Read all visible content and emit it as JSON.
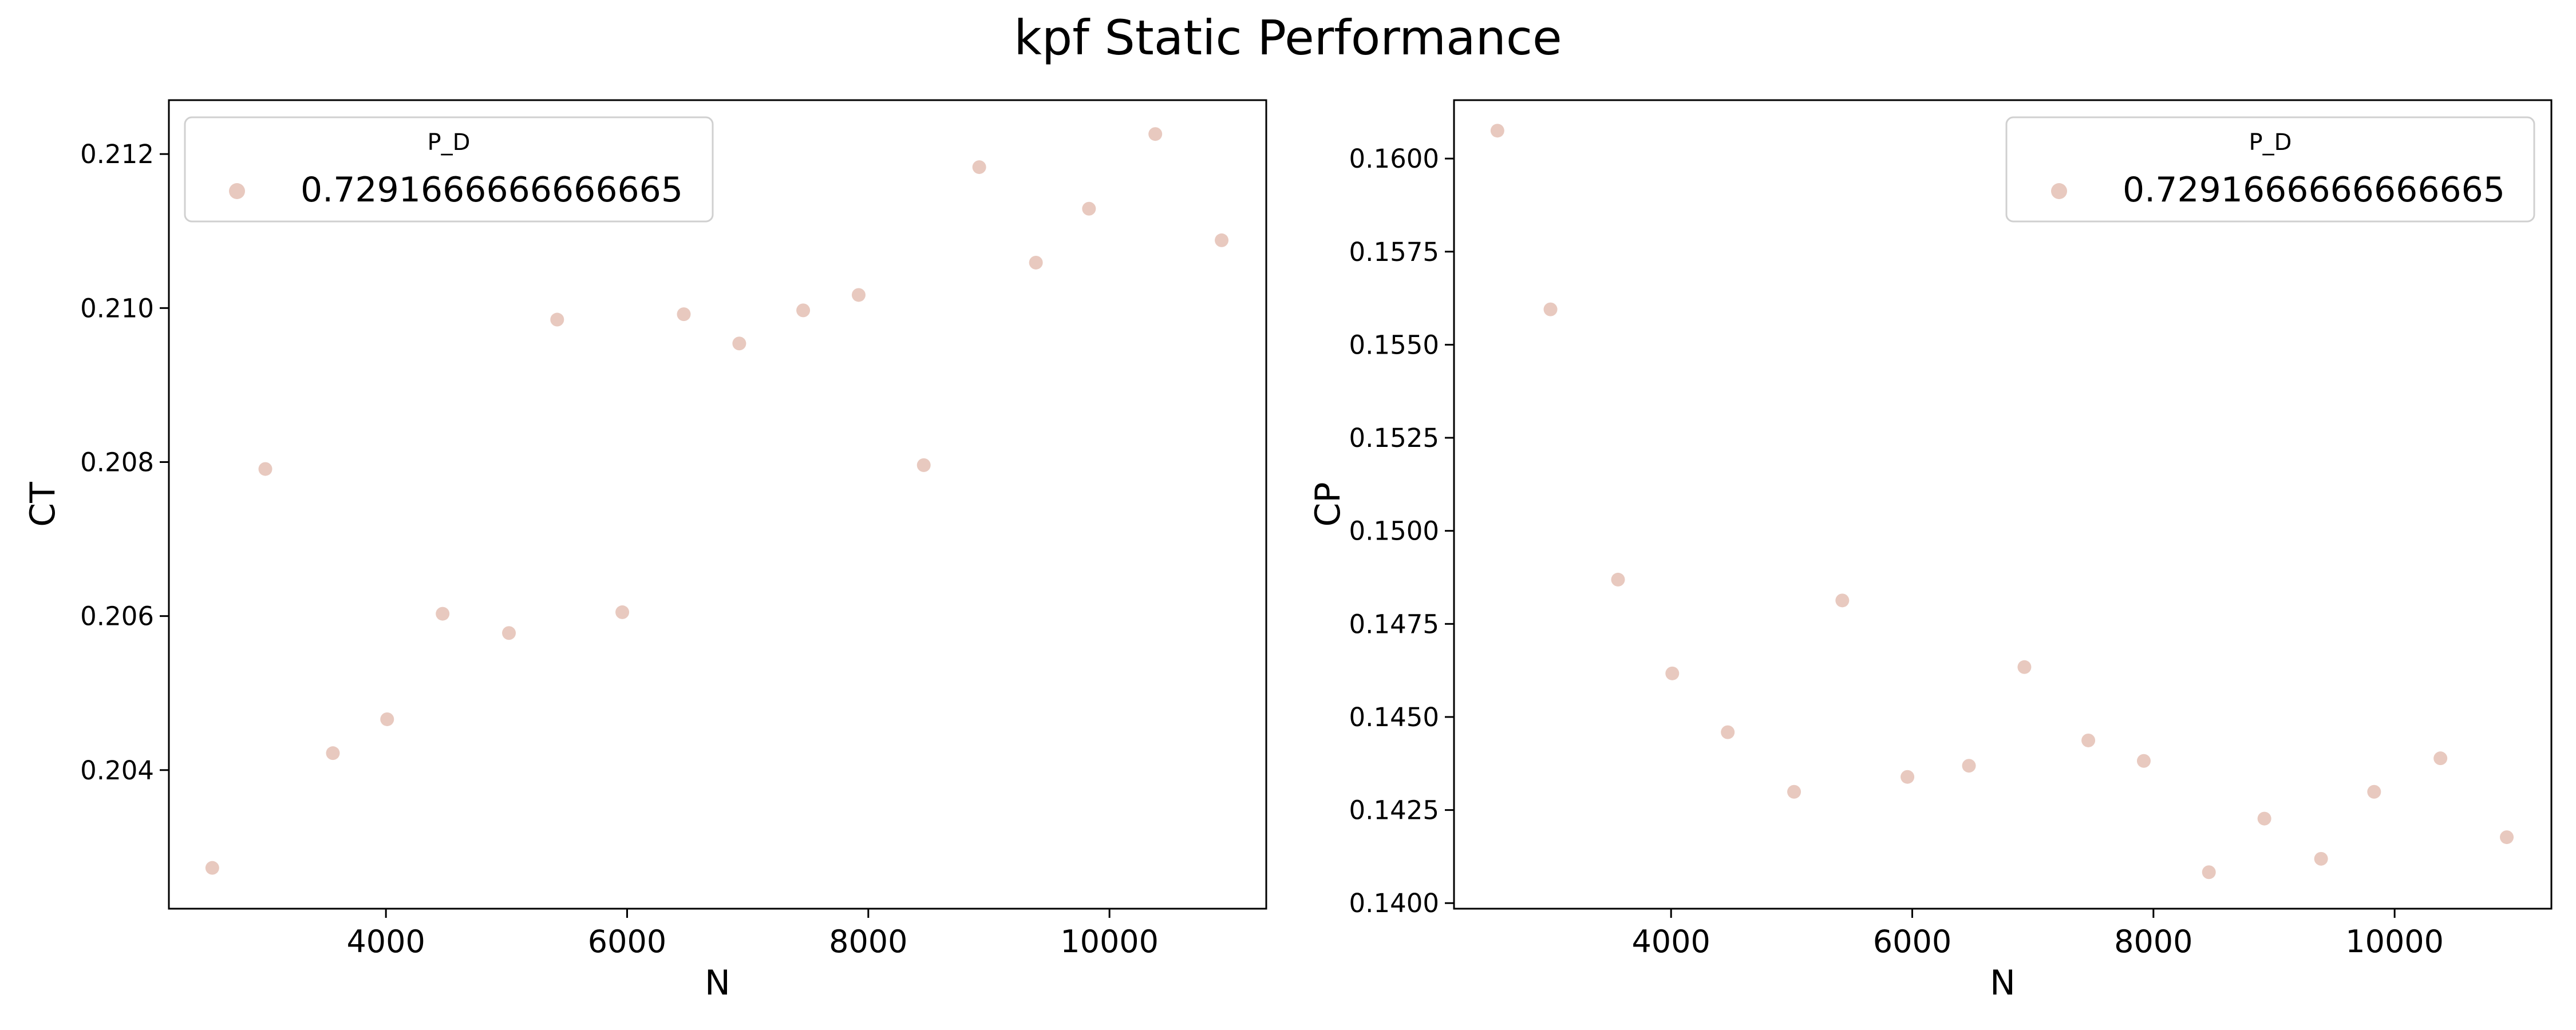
{
  "figure": {
    "title": "kpf Static Performance"
  },
  "chart_data": [
    {
      "type": "scatter",
      "xlabel": "N",
      "ylabel": "CT",
      "xlim": [
        2200,
        11300
      ],
      "ylim": [
        0.2022,
        0.2127
      ],
      "xticks": [
        4000,
        6000,
        8000,
        10000
      ],
      "xtick_labels": [
        "4000",
        "6000",
        "8000",
        "10000"
      ],
      "yticks": [
        0.204,
        0.206,
        0.208,
        0.21,
        0.212
      ],
      "ytick_labels": [
        "0.204",
        "0.206",
        "0.208",
        "0.210",
        "0.212"
      ],
      "grid": false,
      "legend": {
        "title": "P_D",
        "location": "upper left",
        "entries": [
          "0.7291666666666665"
        ]
      },
      "series": [
        {
          "name": "0.7291666666666665",
          "color": "#e8c9bf",
          "x": [
            2560,
            3000,
            3560,
            4010,
            4470,
            5020,
            5420,
            5960,
            6470,
            6930,
            7460,
            7920,
            8460,
            8920,
            9390,
            9830,
            10380,
            10930
          ],
          "y": [
            0.20273,
            0.20791,
            0.20422,
            0.20466,
            0.20603,
            0.20578,
            0.20985,
            0.20605,
            0.20992,
            0.20954,
            0.20997,
            0.21017,
            0.20796,
            0.21183,
            0.21059,
            0.21129,
            0.21226,
            0.21088
          ]
        }
      ]
    },
    {
      "type": "scatter",
      "xlabel": "N",
      "ylabel": "CP",
      "xlim": [
        2200,
        11300
      ],
      "ylim": [
        0.13985,
        0.16157
      ],
      "xticks": [
        4000,
        6000,
        8000,
        10000
      ],
      "xtick_labels": [
        "4000",
        "6000",
        "8000",
        "10000"
      ],
      "yticks": [
        0.14,
        0.1425,
        0.145,
        0.1475,
        0.15,
        0.1525,
        0.155,
        0.1575,
        0.16
      ],
      "ytick_labels": [
        "0.1400",
        "0.1425",
        "0.1450",
        "0.1475",
        "0.1500",
        "0.1525",
        "0.1550",
        "0.1575",
        "0.1600"
      ],
      "grid": false,
      "legend": {
        "title": "P_D",
        "location": "upper right",
        "entries": [
          "0.7291666666666665"
        ]
      },
      "series": [
        {
          "name": "0.7291666666666665",
          "color": "#e8c9bf",
          "x": [
            2560,
            3000,
            3560,
            4010,
            4470,
            5020,
            5420,
            5960,
            6470,
            6930,
            7460,
            7920,
            8460,
            8920,
            9390,
            9830,
            10380,
            10930
          ],
          "y": [
            0.16075,
            0.15595,
            0.14869,
            0.14617,
            0.14459,
            0.14299,
            0.14813,
            0.14339,
            0.14369,
            0.14634,
            0.14437,
            0.14382,
            0.14083,
            0.14227,
            0.14119,
            0.14299,
            0.14389,
            0.14177
          ]
        }
      ]
    }
  ]
}
